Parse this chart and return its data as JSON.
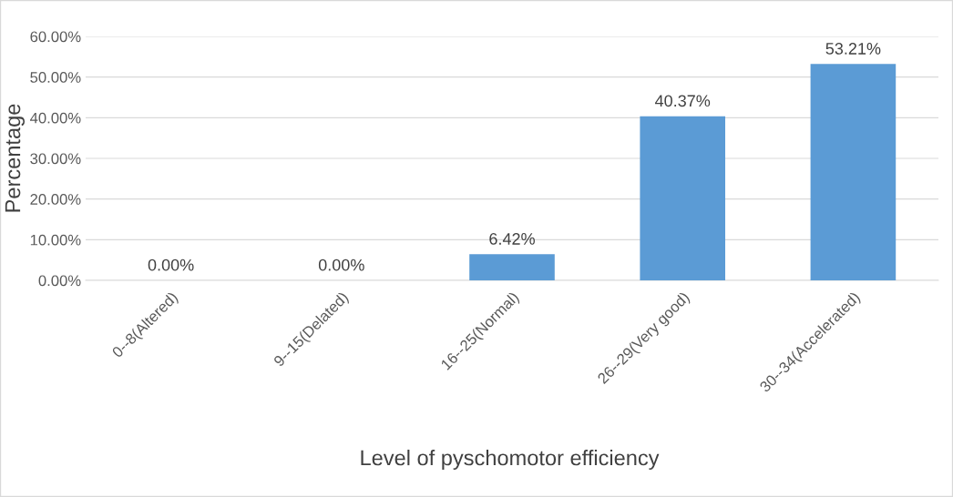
{
  "chart_data": {
    "type": "bar",
    "xlabel": "Level of pyschomotor efficiency",
    "ylabel": "Percentage",
    "categories": [
      "0--8(Altered)",
      "9--15(Delated)",
      "16--25(Normal)",
      "26--29(Very good)",
      "30--34(Accelerated)"
    ],
    "values": [
      0,
      0,
      6.42,
      40.37,
      53.21
    ],
    "value_labels": [
      "0.00%",
      "0.00%",
      "6.42%",
      "40.37%",
      "53.21%"
    ],
    "color": "#5b9bd5",
    "ylim": [
      0,
      60
    ],
    "yticks": [
      {
        "value": 0,
        "label": "0.00%"
      },
      {
        "value": 10,
        "label": "10.00%"
      },
      {
        "value": 20,
        "label": "20.00%"
      },
      {
        "value": 30,
        "label": "30.00%"
      },
      {
        "value": 40,
        "label": "40.00%"
      },
      {
        "value": 50,
        "label": "50.00%"
      },
      {
        "value": 60,
        "label": "60.00%"
      }
    ],
    "grid": "y"
  }
}
